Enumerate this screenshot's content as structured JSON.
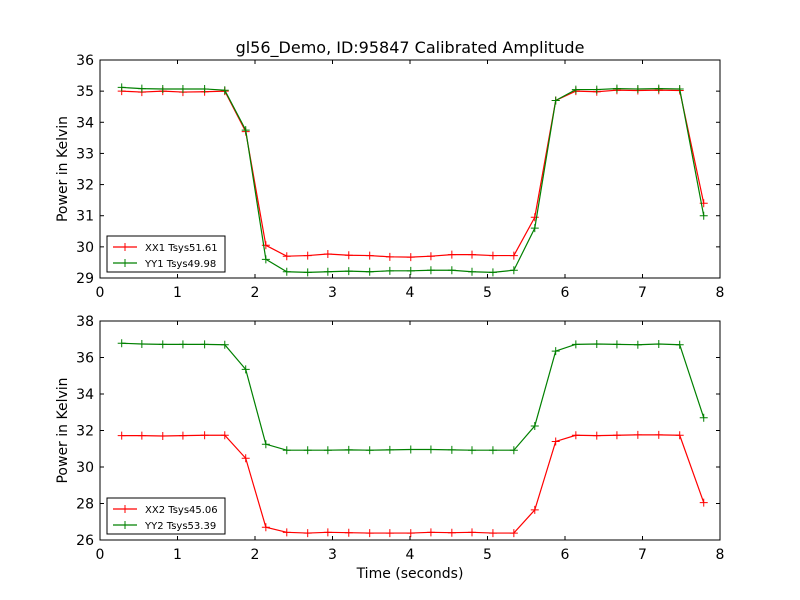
{
  "title": "gl56_Demo, ID:95847 Calibrated Amplitude",
  "xlabel": "Time (seconds)",
  "chart_data": [
    {
      "type": "line",
      "ylabel": "Power in Kelvin",
      "xlim": [
        0,
        8
      ],
      "ylim": [
        29,
        36
      ],
      "xticks": [
        "0",
        "1",
        "2",
        "3",
        "4",
        "5",
        "6",
        "7",
        "8"
      ],
      "yticks": [
        "29",
        "30",
        "31",
        "32",
        "33",
        "34",
        "35",
        "36"
      ],
      "legend_position": "lower-left",
      "x": [
        0.28,
        0.54,
        0.81,
        1.07,
        1.35,
        1.61,
        1.88,
        2.14,
        2.41,
        2.68,
        2.94,
        3.21,
        3.48,
        3.74,
        4.01,
        4.27,
        4.54,
        4.8,
        5.07,
        5.34,
        5.61,
        5.88,
        6.14,
        6.41,
        6.67,
        6.94,
        7.21,
        7.48,
        7.79
      ],
      "series": [
        {
          "name": "XX1 Tsys51.61",
          "color": "#ff0000",
          "values": [
            35.0,
            34.97,
            35.0,
            34.97,
            34.98,
            35.0,
            33.7,
            30.05,
            29.7,
            29.72,
            29.77,
            29.73,
            29.72,
            29.68,
            29.67,
            29.7,
            29.75,
            29.75,
            29.72,
            29.72,
            30.95,
            34.7,
            35.0,
            34.98,
            35.03,
            35.02,
            35.03,
            35.02,
            31.4
          ]
        },
        {
          "name": "YY1 Tsys49.98",
          "color": "#008000",
          "values": [
            35.12,
            35.08,
            35.07,
            35.07,
            35.07,
            35.03,
            33.75,
            29.6,
            29.2,
            29.18,
            29.2,
            29.22,
            29.2,
            29.23,
            29.23,
            29.25,
            29.25,
            29.2,
            29.18,
            29.25,
            30.6,
            34.7,
            35.05,
            35.05,
            35.08,
            35.07,
            35.08,
            35.07,
            31.0
          ]
        }
      ]
    },
    {
      "type": "line",
      "ylabel": "Power in Kelvin",
      "xlim": [
        0,
        8
      ],
      "ylim": [
        26,
        38
      ],
      "xticks": [
        "0",
        "1",
        "2",
        "3",
        "4",
        "5",
        "6",
        "7",
        "8"
      ],
      "yticks": [
        "26",
        "28",
        "30",
        "32",
        "34",
        "36",
        "38"
      ],
      "legend_position": "lower-left",
      "x": [
        0.28,
        0.54,
        0.81,
        1.07,
        1.35,
        1.61,
        1.88,
        2.14,
        2.41,
        2.68,
        2.94,
        3.21,
        3.48,
        3.74,
        4.01,
        4.27,
        4.54,
        4.8,
        5.07,
        5.34,
        5.61,
        5.88,
        6.14,
        6.41,
        6.67,
        6.94,
        7.21,
        7.48,
        7.79
      ],
      "series": [
        {
          "name": "XX2 Tsys45.06",
          "color": "#ff0000",
          "values": [
            31.72,
            31.72,
            31.7,
            31.72,
            31.74,
            31.74,
            30.48,
            26.7,
            26.42,
            26.38,
            26.42,
            26.4,
            26.38,
            26.38,
            26.38,
            26.42,
            26.4,
            26.42,
            26.38,
            26.38,
            27.65,
            31.4,
            31.74,
            31.72,
            31.74,
            31.76,
            31.76,
            31.74,
            28.05
          ]
        },
        {
          "name": "YY2 Tsys53.39",
          "color": "#008000",
          "values": [
            36.78,
            36.74,
            36.72,
            36.72,
            36.72,
            36.7,
            35.35,
            31.25,
            30.92,
            30.92,
            30.92,
            30.94,
            30.92,
            30.94,
            30.96,
            30.96,
            30.94,
            30.92,
            30.92,
            30.92,
            32.25,
            36.35,
            36.72,
            36.74,
            36.72,
            36.7,
            36.74,
            36.7,
            32.7
          ]
        }
      ]
    }
  ]
}
